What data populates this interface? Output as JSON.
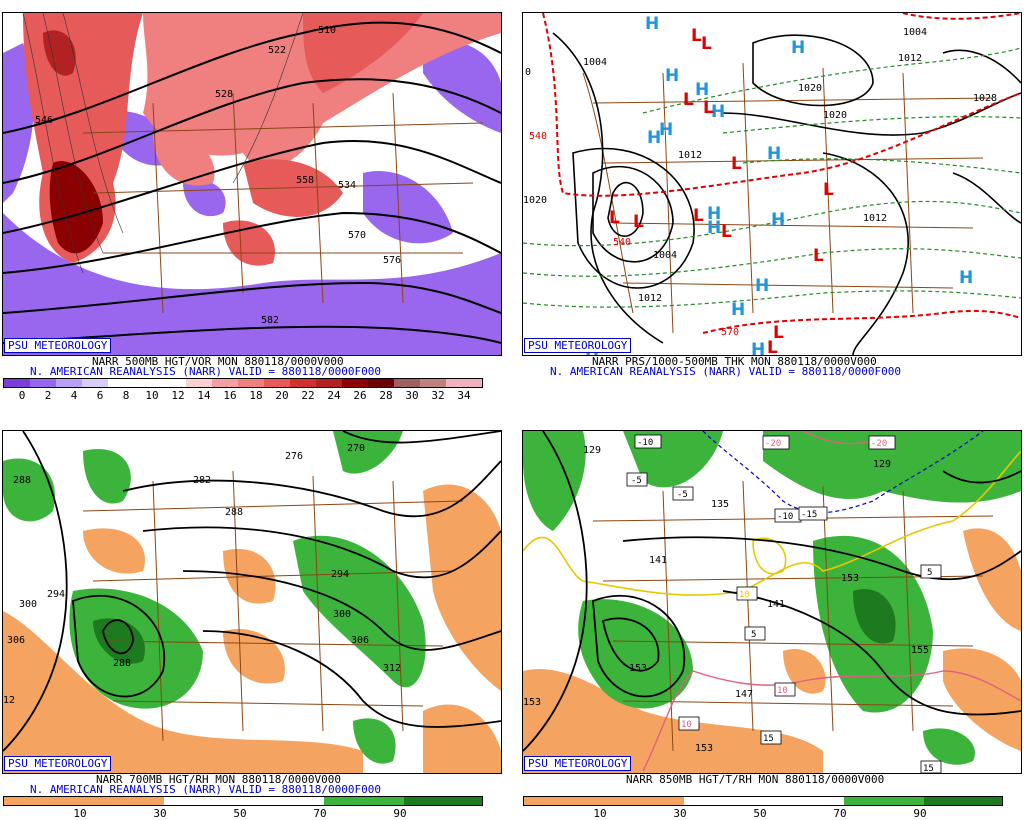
{
  "colors": {
    "vorticity_neg": "#9966ee",
    "vorticity_pos": "#e65a5a",
    "vorticity_dark": "#8b0000",
    "rh_dry": "#f4a460",
    "rh_moist": "#3cb43c",
    "rh_moist_dark": "#1e7a1e",
    "state_lines": "#8b4513",
    "caption_blue": "#0000c8",
    "high_marker": "#1e96dc",
    "low_marker": "#e00000",
    "thickness_lines": "#228b22",
    "thickness_540": "#e00000"
  },
  "branding": "PSU METEOROLOGY",
  "panels": [
    {
      "id": "vor500",
      "caption_line1": "NARR 500MB HGT/VOR MON 880118/0000V000",
      "caption_line2": "N. AMERICAN REANALYSIS (NARR) VALID = 880118/0000F000",
      "colorbar_ticks": [
        "0",
        "2",
        "4",
        "6",
        "8",
        "10",
        "12",
        "14",
        "16",
        "18",
        "20",
        "22",
        "24",
        "26",
        "28",
        "30",
        "32",
        "34"
      ],
      "contour_labels": [
        "510",
        "522",
        "528",
        "534",
        "546",
        "558",
        "570",
        "576",
        "582"
      ]
    },
    {
      "id": "prs1000",
      "caption_line1": "NARR PRS/1000-500MB THK MON 880118/0000V000",
      "caption_line2": "N. AMERICAN REANALYSIS (NARR) VALID = 880118/0000F000",
      "contour_labels": [
        "1004",
        "1004",
        "1012",
        "1012",
        "1020",
        "1028",
        "1020",
        "1012",
        "1004",
        "1012",
        "1020",
        "540",
        "540",
        "570",
        "0"
      ],
      "high_symbol": "H",
      "low_symbol": "L"
    },
    {
      "id": "rh700",
      "caption_line1": "NARR 700MB HGT/RH MON 880118/0000V000",
      "caption_line2": "N. AMERICAN REANALYSIS (NARR) VALID = 880118/0000F000",
      "colorbar_ticks": [
        "10",
        "30",
        "50",
        "70",
        "90"
      ],
      "contour_labels": [
        "276",
        "270",
        "282",
        "288",
        "288",
        "294",
        "300",
        "306",
        "294",
        "300",
        "306",
        "312",
        "288",
        "12"
      ]
    },
    {
      "id": "rh850",
      "caption_line1": "NARR 850MB HGT/T/RH MON 880118/0000V000",
      "colorbar_ticks": [
        "10",
        "30",
        "50",
        "70",
        "90"
      ],
      "contour_labels": [
        "129",
        "129",
        "135",
        "141",
        "141",
        "147",
        "153",
        "153",
        "153",
        "155",
        "153"
      ],
      "temp_boxes": [
        "-10",
        "-20",
        "-20",
        "-5",
        "-5",
        "-10",
        "-15",
        "10",
        "5",
        "5",
        "10",
        "10",
        "15",
        "15"
      ]
    }
  ]
}
